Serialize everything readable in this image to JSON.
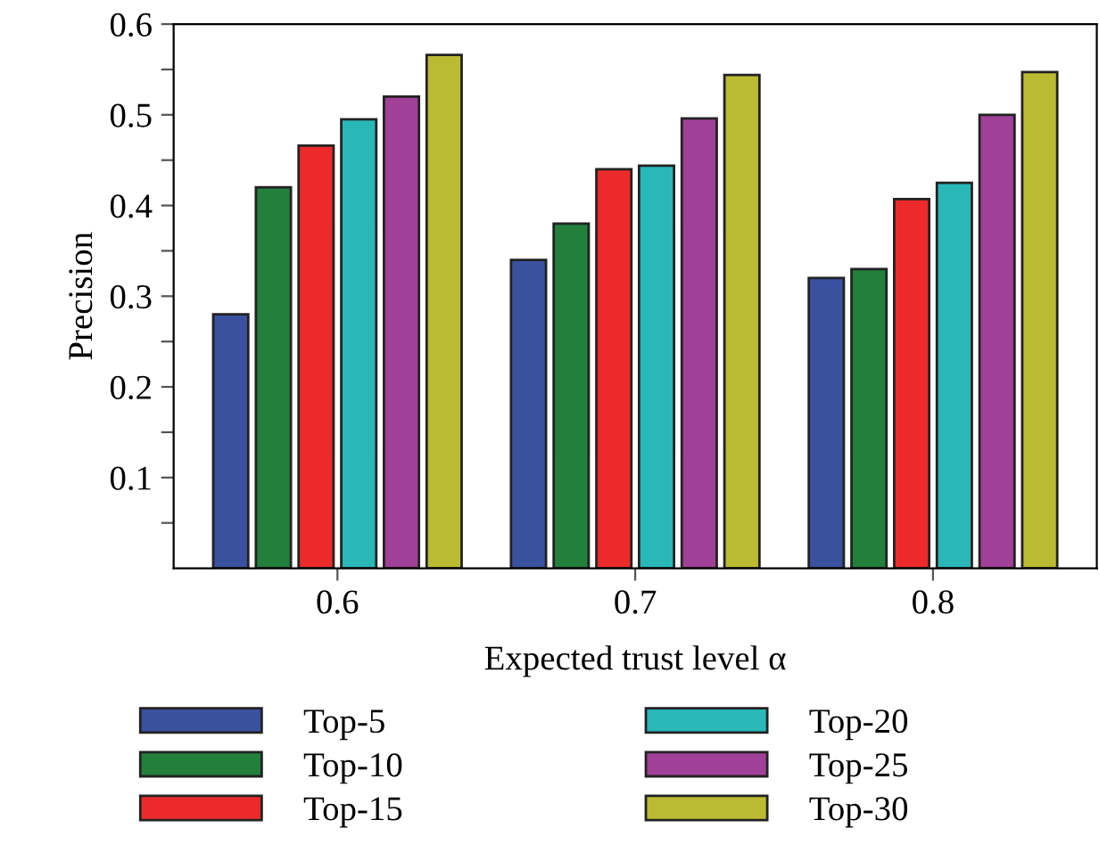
{
  "chart_data": {
    "type": "bar",
    "xlabel": "Expected trust level α",
    "ylabel": "Precision",
    "categories": [
      "0.6",
      "0.7",
      "0.8"
    ],
    "series": [
      {
        "name": "Top-5",
        "color": "#3a51a0",
        "values": [
          0.28,
          0.34,
          0.32
        ]
      },
      {
        "name": "Top-10",
        "color": "#227f3c",
        "values": [
          0.42,
          0.38,
          0.33
        ]
      },
      {
        "name": "Top-15",
        "color": "#ec2a2a",
        "values": [
          0.466,
          0.44,
          0.407
        ]
      },
      {
        "name": "Top-20",
        "color": "#29b7b8",
        "values": [
          0.495,
          0.444,
          0.425
        ]
      },
      {
        "name": "Top-25",
        "color": "#a04097",
        "values": [
          0.52,
          0.496,
          0.5
        ]
      },
      {
        "name": "Top-30",
        "color": "#bbbb33",
        "values": [
          0.566,
          0.544,
          0.547
        ]
      }
    ],
    "ylim": [
      0,
      0.6
    ],
    "yticks": [
      {
        "value": 0.05,
        "label": null
      },
      0.1,
      {
        "value": 0.15,
        "label": null
      },
      0.2,
      {
        "value": 0.25,
        "label": null
      },
      0.3,
      {
        "value": 0.35,
        "label": null
      },
      0.4,
      {
        "value": 0.45,
        "label": null
      },
      0.5,
      {
        "value": 0.55,
        "label": null
      },
      0.6
    ],
    "grid": false,
    "legend": "bottom"
  }
}
